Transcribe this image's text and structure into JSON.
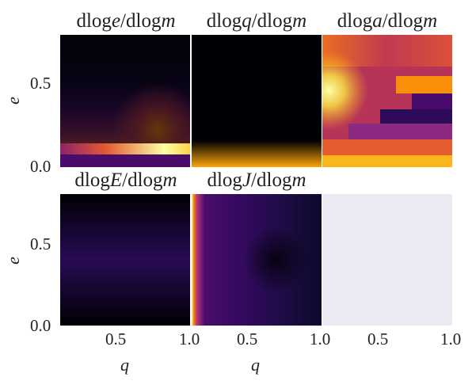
{
  "chart_data": [
    {
      "type": "heatmap",
      "title_prefix": "dlog",
      "title_var": "e",
      "title_suffix": "/dlog",
      "title_var2": "m",
      "colormap": "inferno",
      "xlabel": "",
      "ylabel": "e",
      "yticks": [
        "0.0",
        "0.5"
      ],
      "xticks": []
    },
    {
      "type": "heatmap",
      "title_prefix": "dlog",
      "title_var": "q",
      "title_suffix": "/dlog",
      "title_var2": "m",
      "colormap": "inferno",
      "xlabel": "",
      "ylabel": "",
      "yticks": [],
      "xticks": []
    },
    {
      "type": "heatmap",
      "title_prefix": "dlog",
      "title_var": "a",
      "title_suffix": "/dlog",
      "title_var2": "m",
      "colormap": "inferno",
      "xlabel": "",
      "ylabel": "",
      "yticks": [],
      "xticks": []
    },
    {
      "type": "heatmap",
      "title_prefix": "dlog",
      "title_var": "E",
      "title_suffix": "/dlog",
      "title_var2": "m",
      "colormap": "inferno",
      "xlabel": "q",
      "ylabel": "e",
      "yticks": [
        "0.0",
        "0.5"
      ],
      "xticks": [
        "0.5",
        "1.0"
      ]
    },
    {
      "type": "heatmap",
      "title_prefix": "dlog",
      "title_var": "J",
      "title_suffix": "/dlog",
      "title_var2": "m",
      "colormap": "inferno",
      "xlabel": "q",
      "ylabel": "",
      "yticks": [],
      "xticks": [
        "0.5",
        "1.0"
      ]
    },
    {
      "type": "empty",
      "xticks": [
        "0.5",
        "1.0"
      ]
    }
  ],
  "colors": {
    "empty_panel": "#eaeaf2",
    "background": "#ffffff"
  }
}
